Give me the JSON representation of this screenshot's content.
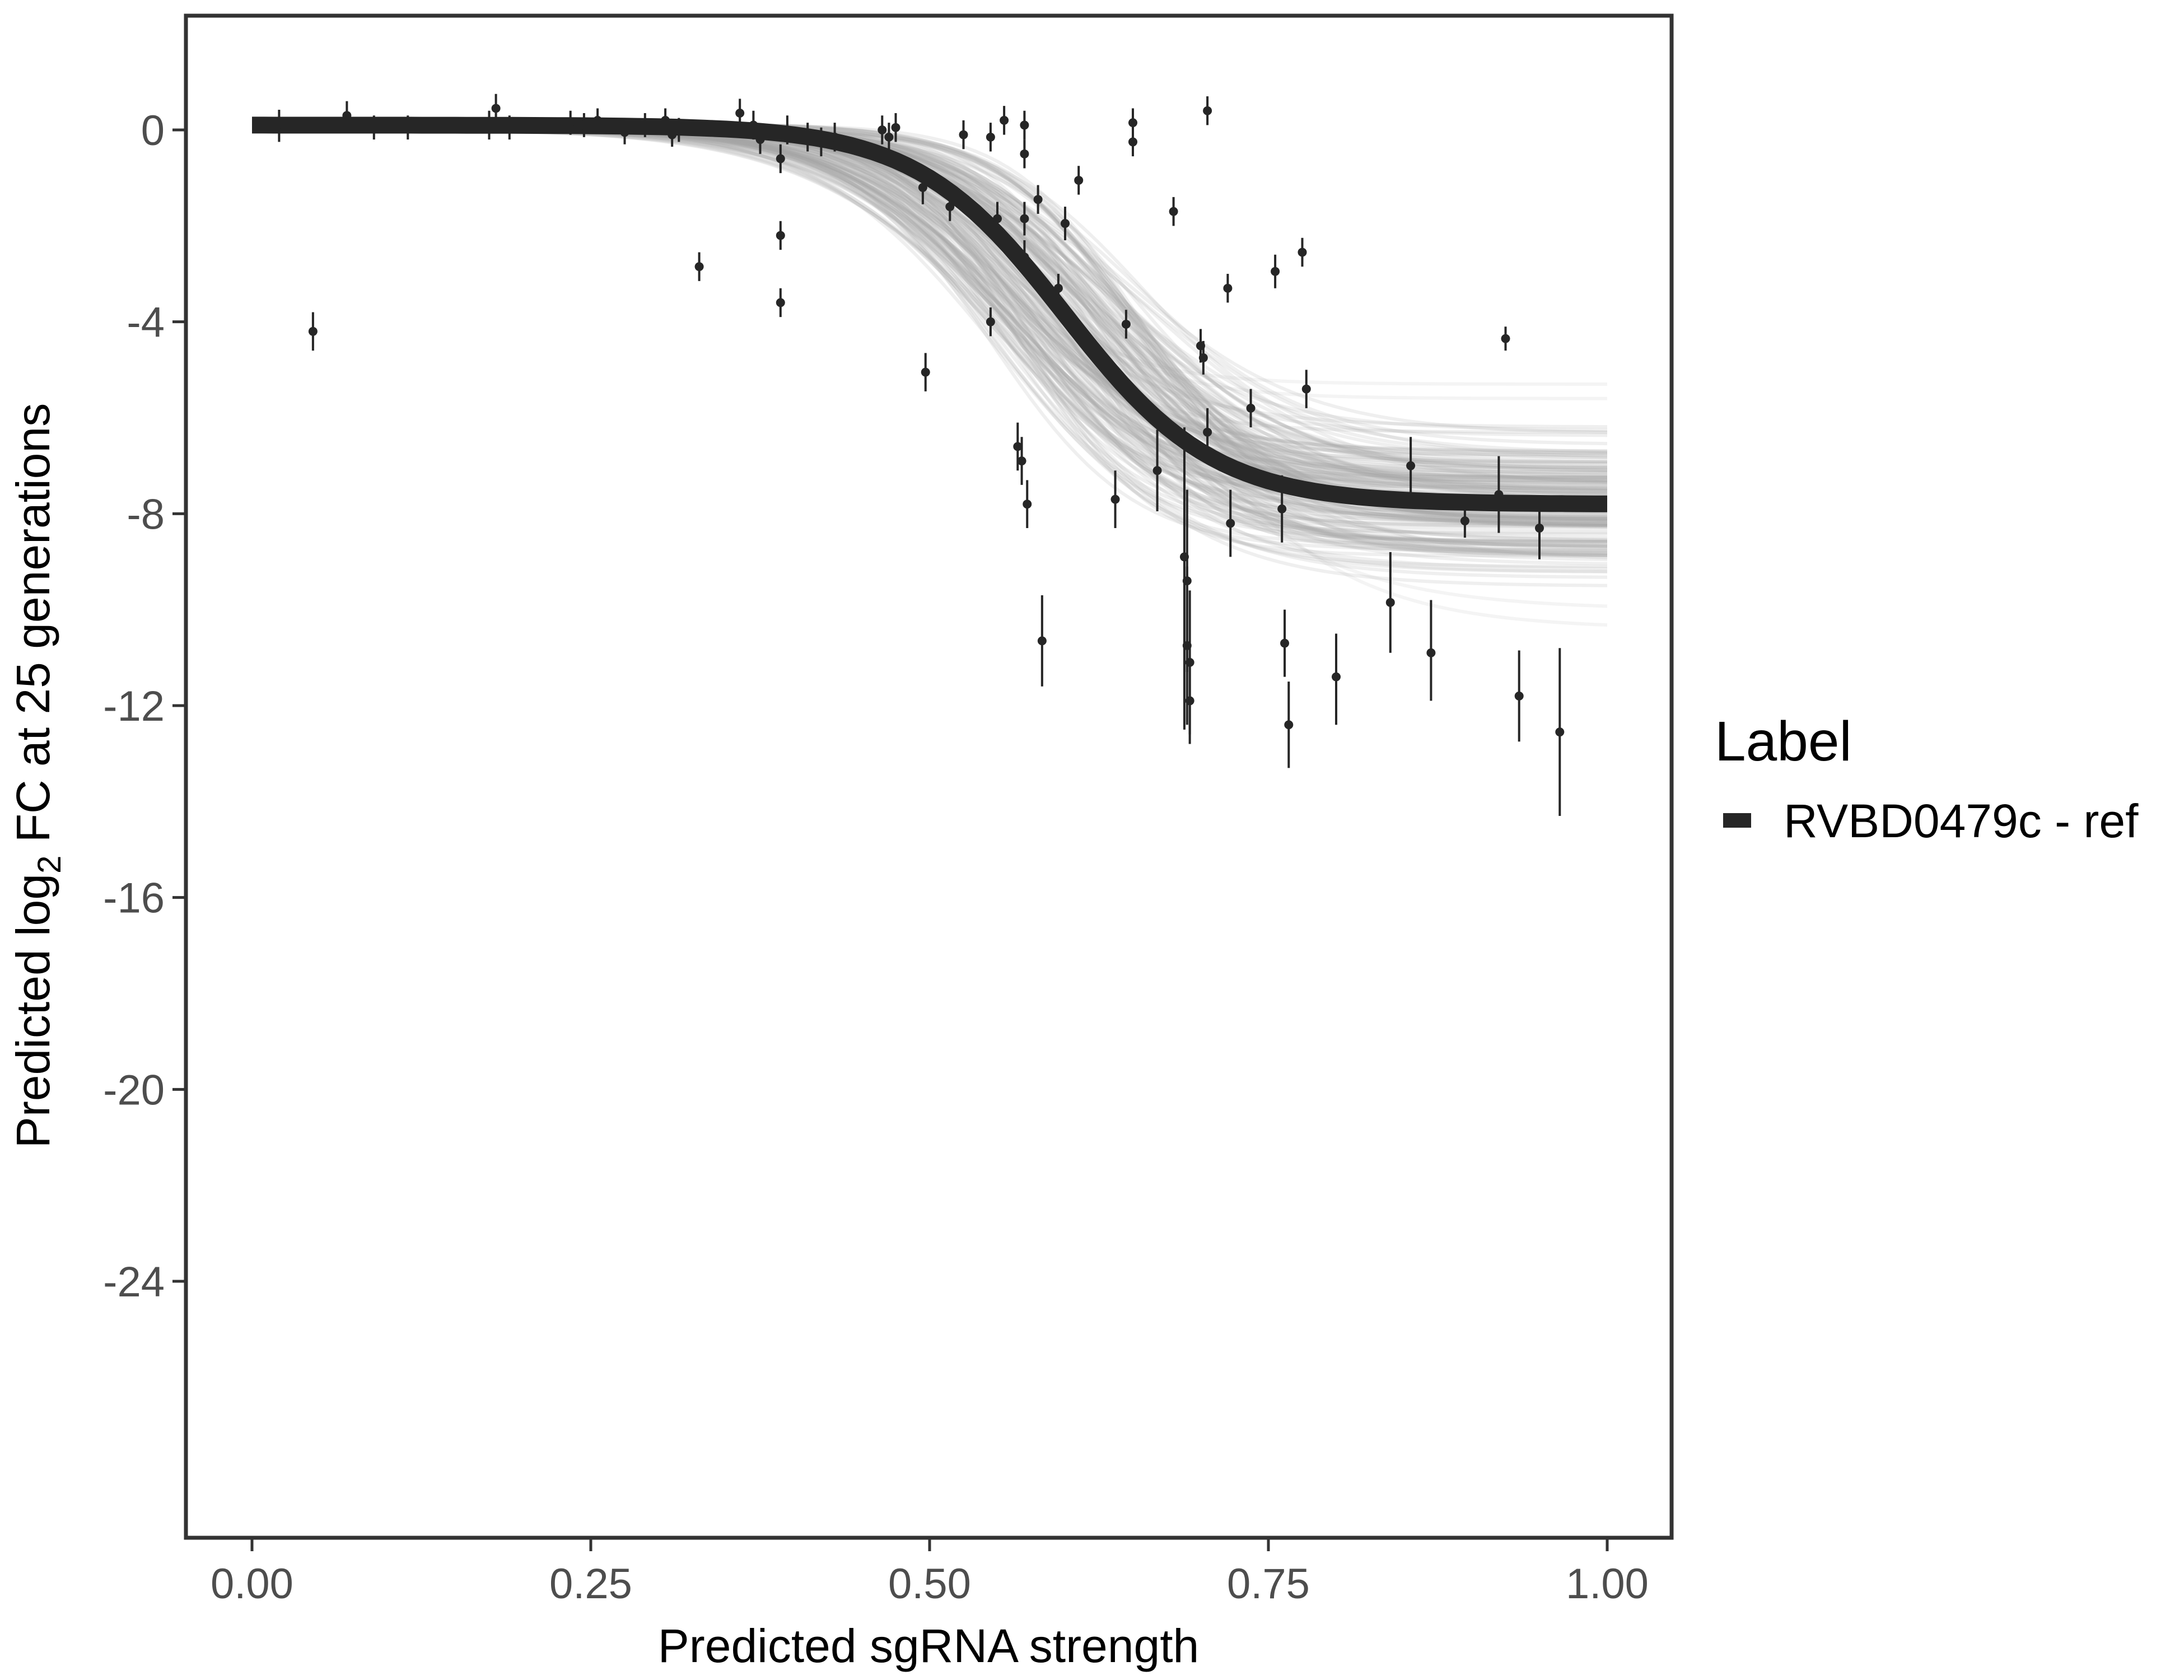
{
  "chart_data": {
    "type": "scatter",
    "title": "",
    "xlabel": "Predicted sgRNA strength",
    "ylabel": {
      "prefix": "Predicted  log",
      "subscript": "2",
      "suffix": " FC at 25 generations"
    },
    "xlim": [
      -0.12,
      2.85
    ],
    "ylim": [
      -29.8,
      2.4
    ],
    "x_ticks": [
      {
        "value": 0.0,
        "label": "0.00"
      },
      {
        "value": 0.25,
        "label": "0.25"
      },
      {
        "value": 0.5,
        "label": "0.50"
      },
      {
        "value": 0.75,
        "label": "0.75"
      },
      {
        "value": 1.0,
        "label": "1.00"
      }
    ],
    "y_ticks": [
      {
        "value": 0,
        "label": "0"
      },
      {
        "value": -4,
        "label": "-4"
      },
      {
        "value": -8,
        "label": "-8"
      },
      {
        "value": -12,
        "label": "-12"
      },
      {
        "value": -16,
        "label": "-16"
      },
      {
        "value": -20,
        "label": "-20"
      },
      {
        "value": -24,
        "label": "-24"
      }
    ],
    "grid": false,
    "legend": {
      "title": "Label",
      "position": "right",
      "entries": [
        {
          "label": "RVBD0479c - ref",
          "color": "#262626"
        }
      ]
    },
    "fit_curve": {
      "model": "logistic",
      "top": 0.1,
      "bottom": -7.8,
      "midpoint": 0.6,
      "slope": 0.055,
      "x_range": [
        0.0,
        1.0
      ],
      "color": "#262626"
    },
    "uncertainty_band": {
      "color": "#a6a6a6",
      "bottom_range": [
        -10.4,
        -5.3
      ],
      "midpoint_range": [
        0.54,
        0.66
      ]
    },
    "series": [
      {
        "color": "#262626",
        "points": [
          {
            "x": 0.02,
            "y": 0.12,
            "lo": -0.25,
            "hi": 0.42
          },
          {
            "x": 0.045,
            "y": -4.2,
            "lo": -4.6,
            "hi": -3.8
          },
          {
            "x": 0.07,
            "y": 0.3,
            "lo": 0.0,
            "hi": 0.6
          },
          {
            "x": 0.09,
            "y": 0.05,
            "lo": -0.2,
            "hi": 0.3
          },
          {
            "x": 0.115,
            "y": 0.05,
            "lo": -0.2,
            "hi": 0.3
          },
          {
            "x": 0.175,
            "y": 0.1,
            "lo": -0.2,
            "hi": 0.4
          },
          {
            "x": 0.18,
            "y": 0.45,
            "lo": 0.1,
            "hi": 0.75
          },
          {
            "x": 0.19,
            "y": 0.05,
            "lo": -0.2,
            "hi": 0.3
          },
          {
            "x": 0.235,
            "y": 0.15,
            "lo": -0.1,
            "hi": 0.4
          },
          {
            "x": 0.245,
            "y": 0.1,
            "lo": -0.15,
            "hi": 0.35
          },
          {
            "x": 0.255,
            "y": 0.2,
            "lo": -0.05,
            "hi": 0.45
          },
          {
            "x": 0.275,
            "y": -0.05,
            "lo": -0.3,
            "hi": 0.2
          },
          {
            "x": 0.29,
            "y": 0.1,
            "lo": -0.15,
            "hi": 0.35
          },
          {
            "x": 0.305,
            "y": 0.2,
            "lo": -0.05,
            "hi": 0.45
          },
          {
            "x": 0.31,
            "y": -0.1,
            "lo": -0.35,
            "hi": 0.15
          },
          {
            "x": 0.315,
            "y": 0.0,
            "lo": -0.25,
            "hi": 0.25
          },
          {
            "x": 0.33,
            "y": -2.85,
            "lo": -3.15,
            "hi": -2.55
          },
          {
            "x": 0.36,
            "y": 0.35,
            "lo": 0.05,
            "hi": 0.65
          },
          {
            "x": 0.37,
            "y": 0.1,
            "lo": -0.2,
            "hi": 0.4
          },
          {
            "x": 0.375,
            "y": -0.2,
            "lo": -0.5,
            "hi": 0.1
          },
          {
            "x": 0.39,
            "y": -0.6,
            "lo": -0.9,
            "hi": -0.3
          },
          {
            "x": 0.39,
            "y": -2.2,
            "lo": -2.5,
            "hi": -1.9
          },
          {
            "x": 0.39,
            "y": -3.6,
            "lo": -3.9,
            "hi": -3.3
          },
          {
            "x": 0.395,
            "y": 0.0,
            "lo": -0.3,
            "hi": 0.3
          },
          {
            "x": 0.41,
            "y": -0.15,
            "lo": -0.45,
            "hi": 0.15
          },
          {
            "x": 0.42,
            "y": -0.25,
            "lo": -0.55,
            "hi": 0.05
          },
          {
            "x": 0.43,
            "y": -0.15,
            "lo": -0.45,
            "hi": 0.15
          },
          {
            "x": 0.465,
            "y": 0.0,
            "lo": -0.3,
            "hi": 0.3
          },
          {
            "x": 0.47,
            "y": -0.15,
            "lo": -0.45,
            "hi": 0.15
          },
          {
            "x": 0.475,
            "y": 0.05,
            "lo": -0.25,
            "hi": 0.35
          },
          {
            "x": 0.495,
            "y": -1.2,
            "lo": -1.55,
            "hi": -0.85
          },
          {
            "x": 0.497,
            "y": -5.05,
            "lo": -5.45,
            "hi": -4.65
          },
          {
            "x": 0.515,
            "y": -1.6,
            "lo": -1.9,
            "hi": -1.3
          },
          {
            "x": 0.525,
            "y": -0.1,
            "lo": -0.4,
            "hi": 0.2
          },
          {
            "x": 0.545,
            "y": -0.15,
            "lo": -0.45,
            "hi": 0.15
          },
          {
            "x": 0.545,
            "y": -4.0,
            "lo": -4.3,
            "hi": -3.7
          },
          {
            "x": 0.55,
            "y": -1.85,
            "lo": -2.2,
            "hi": -1.5
          },
          {
            "x": 0.555,
            "y": 0.2,
            "lo": -0.1,
            "hi": 0.5
          },
          {
            "x": 0.565,
            "y": -6.6,
            "lo": -7.1,
            "hi": -6.1
          },
          {
            "x": 0.568,
            "y": -6.9,
            "lo": -7.4,
            "hi": -6.4
          },
          {
            "x": 0.57,
            "y": -2.65,
            "lo": -3.0,
            "hi": -2.3
          },
          {
            "x": 0.57,
            "y": -1.85,
            "lo": -2.2,
            "hi": -1.5
          },
          {
            "x": 0.57,
            "y": -0.5,
            "lo": -0.8,
            "hi": -0.2
          },
          {
            "x": 0.57,
            "y": 0.1,
            "lo": -0.2,
            "hi": 0.4
          },
          {
            "x": 0.572,
            "y": -7.8,
            "lo": -8.3,
            "hi": -7.3
          },
          {
            "x": 0.58,
            "y": -1.45,
            "lo": -1.75,
            "hi": -1.15
          },
          {
            "x": 0.583,
            "y": -10.65,
            "lo": -11.6,
            "hi": -9.7
          },
          {
            "x": 0.595,
            "y": -3.3,
            "lo": -3.6,
            "hi": -3.0
          },
          {
            "x": 0.6,
            "y": -1.95,
            "lo": -2.3,
            "hi": -1.6
          },
          {
            "x": 0.61,
            "y": -1.05,
            "lo": -1.35,
            "hi": -0.75
          },
          {
            "x": 0.637,
            "y": -7.7,
            "lo": -8.3,
            "hi": -7.1
          },
          {
            "x": 0.645,
            "y": -4.05,
            "lo": -4.35,
            "hi": -3.75
          },
          {
            "x": 0.65,
            "y": 0.15,
            "lo": -0.15,
            "hi": 0.45
          },
          {
            "x": 0.65,
            "y": -0.25,
            "lo": -0.55,
            "hi": 0.05
          },
          {
            "x": 0.668,
            "y": -7.1,
            "lo": -7.95,
            "hi": -6.25
          },
          {
            "x": 0.68,
            "y": -1.7,
            "lo": -2.0,
            "hi": -1.4
          },
          {
            "x": 0.688,
            "y": -8.9,
            "lo": -12.5,
            "hi": -6.2
          },
          {
            "x": 0.69,
            "y": -9.4,
            "lo": -11.3,
            "hi": -7.5
          },
          {
            "x": 0.69,
            "y": -10.75,
            "lo": -12.4,
            "hi": -9.1
          },
          {
            "x": 0.692,
            "y": -11.1,
            "lo": -12.6,
            "hi": -9.6
          },
          {
            "x": 0.692,
            "y": -11.9,
            "lo": -12.8,
            "hi": -11.0
          },
          {
            "x": 0.7,
            "y": -4.5,
            "lo": -4.85,
            "hi": -4.15
          },
          {
            "x": 0.702,
            "y": -4.75,
            "lo": -5.1,
            "hi": -4.4
          },
          {
            "x": 0.705,
            "y": 0.4,
            "lo": 0.1,
            "hi": 0.7
          },
          {
            "x": 0.705,
            "y": -6.3,
            "lo": -6.8,
            "hi": -5.8
          },
          {
            "x": 0.72,
            "y": -3.3,
            "lo": -3.6,
            "hi": -3.0
          },
          {
            "x": 0.722,
            "y": -8.2,
            "lo": -8.9,
            "hi": -7.5
          },
          {
            "x": 0.737,
            "y": -5.8,
            "lo": -6.2,
            "hi": -5.4
          },
          {
            "x": 0.755,
            "y": -2.95,
            "lo": -3.3,
            "hi": -2.6
          },
          {
            "x": 0.76,
            "y": -7.9,
            "lo": -8.6,
            "hi": -7.2
          },
          {
            "x": 0.762,
            "y": -10.7,
            "lo": -11.4,
            "hi": -10.0
          },
          {
            "x": 0.765,
            "y": -12.4,
            "lo": -13.3,
            "hi": -11.5
          },
          {
            "x": 0.775,
            "y": -2.55,
            "lo": -2.85,
            "hi": -2.25
          },
          {
            "x": 0.778,
            "y": -5.4,
            "lo": -5.8,
            "hi": -5.0
          },
          {
            "x": 0.8,
            "y": -11.4,
            "lo": -12.4,
            "hi": -10.5
          },
          {
            "x": 0.84,
            "y": -9.85,
            "lo": -10.9,
            "hi": -8.8
          },
          {
            "x": 0.855,
            "y": -7.0,
            "lo": -7.6,
            "hi": -6.4
          },
          {
            "x": 0.87,
            "y": -10.9,
            "lo": -11.9,
            "hi": -9.8
          },
          {
            "x": 0.895,
            "y": -8.15,
            "lo": -8.5,
            "hi": -7.8
          },
          {
            "x": 0.92,
            "y": -7.6,
            "lo": -8.4,
            "hi": -6.8
          },
          {
            "x": 0.925,
            "y": -4.35,
            "lo": -4.6,
            "hi": -4.1
          },
          {
            "x": 0.935,
            "y": -11.8,
            "lo": -12.75,
            "hi": -10.85
          },
          {
            "x": 0.95,
            "y": -8.3,
            "lo": -8.95,
            "hi": -7.65
          },
          {
            "x": 0.965,
            "y": -12.55,
            "lo": -14.3,
            "hi": -10.8
          }
        ]
      }
    ]
  }
}
